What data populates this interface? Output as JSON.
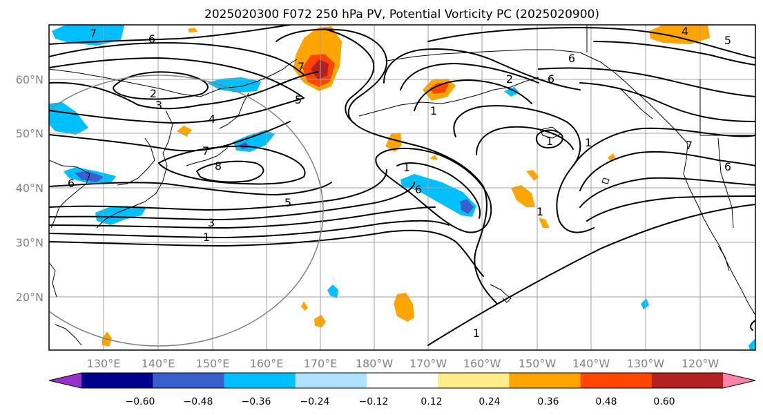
{
  "title": "2025020300 F072 250 hPa PV, Potential Vorticity PC (2025020900)",
  "map": {
    "lon_ticks": [
      "130°E",
      "140°E",
      "150°E",
      "160°E",
      "170°E",
      "180°W",
      "170°W",
      "160°W",
      "150°W",
      "140°W",
      "130°W",
      "120°W"
    ],
    "lat_ticks": [
      "20°N",
      "30°N",
      "40°N",
      "50°N",
      "60°N"
    ],
    "contour_labels": [
      "7",
      "6",
      "2",
      "3",
      "4",
      "7",
      "8",
      "6",
      "5",
      "3",
      "1",
      "7",
      "5",
      "1",
      "6",
      "1",
      "6",
      "2",
      "6",
      "1",
      "6",
      "5",
      "4",
      "7",
      "1",
      "1",
      "1"
    ]
  },
  "colorbar": {
    "ticks": [
      "−0.60",
      "−0.48",
      "−0.36",
      "−0.24",
      "−0.12",
      "0.12",
      "0.24",
      "0.36",
      "0.48",
      "0.60"
    ],
    "colors": [
      "#9932cc",
      "#00008b",
      "#3a5fcd",
      "#00bfff",
      "#b0e2ff",
      "#ffffff",
      "#ffec8b",
      "#ffa500",
      "#ff4500",
      "#b22222",
      "#ff82ab"
    ]
  }
}
